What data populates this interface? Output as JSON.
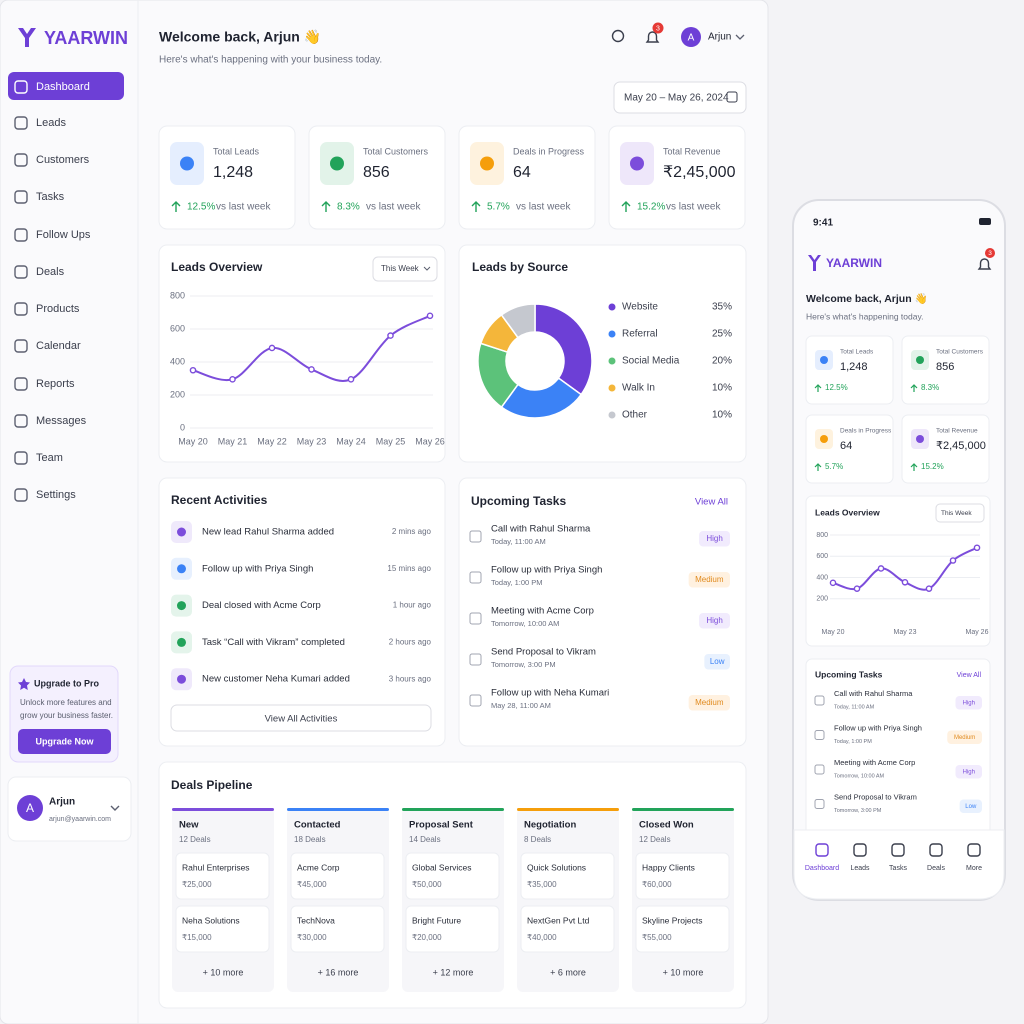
{
  "brand": "YAARWIN",
  "nav": [
    "Dashboard",
    "Leads",
    "Customers",
    "Tasks",
    "Follow Ups",
    "Deals",
    "Products",
    "Calendar",
    "Reports",
    "Messages",
    "Team",
    "Settings"
  ],
  "upgrade": {
    "title": "Upgrade to Pro",
    "text": [
      "Unlock more features and",
      "grow your business faster."
    ],
    "button": "Upgrade Now"
  },
  "user": {
    "initial": "A",
    "name": "Arjun",
    "email": "arjun@yaarwin.com"
  },
  "header": {
    "title": "Welcome back, Arjun 👋",
    "subtitle": "Here's what's happening with your business today.",
    "notifications": "3",
    "user_initial": "A",
    "user_name": "Arjun",
    "date_range": "May 20 – May 26, 2024"
  },
  "stats": [
    {
      "label": "Total Leads",
      "value": "1,248",
      "change": "12.5%",
      "note": "vs last week",
      "color": "#3b82f6"
    },
    {
      "label": "Total Customers",
      "value": "856",
      "change": "8.3%",
      "note": "vs last week",
      "color": "#22a35a"
    },
    {
      "label": "Deals in Progress",
      "value": "64",
      "change": "5.7%",
      "note": "vs last week",
      "color": "#f59e0b"
    },
    {
      "label": "Total Revenue",
      "value": "₹2,45,000",
      "change": "15.2%",
      "note": "vs last week",
      "color": "#7c4ddb"
    }
  ],
  "leads_overview": {
    "type": "line",
    "title": "Leads Overview",
    "period": "This Week",
    "categories": [
      "May 20",
      "May 21",
      "May 22",
      "May 23",
      "May 24",
      "May 25",
      "May 26"
    ],
    "values": [
      350,
      295,
      485,
      355,
      295,
      560,
      680
    ],
    "color": "#7c4ddb",
    "ylim": [
      0,
      800
    ],
    "yticks": [
      0,
      200,
      400,
      600,
      800
    ],
    "grid": true
  },
  "leads_by_source": {
    "type": "pie",
    "title": "Leads by Source",
    "categories": [
      "Website",
      "Referral",
      "Social Media",
      "Walk In",
      "Other"
    ],
    "values": [
      35,
      25,
      20,
      10,
      10
    ],
    "value_labels": [
      "35%",
      "25%",
      "20%",
      "10%",
      "10%"
    ],
    "colors": [
      "#6d3fd6",
      "#3b82f6",
      "#5cc27a",
      "#f4b63a",
      "#c5c8cf"
    ]
  },
  "recent_activities": {
    "title": "Recent Activities",
    "items": [
      {
        "text": "New lead Rahul Sharma added",
        "time": "2 mins ago"
      },
      {
        "text": "Follow up with Priya Singh",
        "time": "15 mins ago"
      },
      {
        "text": "Deal closed with Acme Corp",
        "time": "1 hour ago"
      },
      {
        "text": "Task “Call with Vikram” completed",
        "time": "2 hours ago"
      },
      {
        "text": "New customer Neha Kumari added",
        "time": "3 hours ago"
      }
    ],
    "button": "View All Activities"
  },
  "upcoming_tasks": {
    "title": "Upcoming Tasks",
    "link": "View All",
    "items": [
      {
        "title": "Call with Rahul Sharma",
        "due": "Today, 11:00 AM",
        "priority": "High"
      },
      {
        "title": "Follow up with Priya Singh",
        "due": "Today, 1:00 PM",
        "priority": "Medium"
      },
      {
        "title": "Meeting with Acme Corp",
        "due": "Tomorrow, 10:00 AM",
        "priority": "High"
      },
      {
        "title": "Send Proposal to Vikram",
        "due": "Tomorrow, 3:00 PM",
        "priority": "Low"
      },
      {
        "title": "Follow up with Neha Kumari",
        "due": "May 28, 11:00 AM",
        "priority": "Medium"
      }
    ]
  },
  "deals_pipeline": {
    "title": "Deals Pipeline",
    "stages": [
      {
        "name": "New",
        "count": "12 Deals",
        "color": "#7c4ddb",
        "deals": [
          {
            "name": "Rahul Enterprises",
            "amount": "₹25,000"
          },
          {
            "name": "Neha Solutions",
            "amount": "₹15,000"
          }
        ],
        "more": "+ 10 more"
      },
      {
        "name": "Contacted",
        "count": "18 Deals",
        "color": "#3b82f6",
        "deals": [
          {
            "name": "Acme Corp",
            "amount": "₹45,000"
          },
          {
            "name": "TechNova",
            "amount": "₹30,000"
          }
        ],
        "more": "+ 16 more"
      },
      {
        "name": "Proposal Sent",
        "count": "14 Deals",
        "color": "#22a35a",
        "deals": [
          {
            "name": "Global Services",
            "amount": "₹50,000"
          },
          {
            "name": "Bright Future",
            "amount": "₹20,000"
          }
        ],
        "more": "+ 12 more"
      },
      {
        "name": "Negotiation",
        "count": "8 Deals",
        "color": "#f59e0b",
        "deals": [
          {
            "name": "Quick Solutions",
            "amount": "₹35,000"
          },
          {
            "name": "NextGen Pvt Ltd",
            "amount": "₹40,000"
          }
        ],
        "more": "+ 6 more"
      },
      {
        "name": "Closed Won",
        "count": "12 Deals",
        "color": "#22a35a",
        "deals": [
          {
            "name": "Happy Clients",
            "amount": "₹60,000"
          },
          {
            "name": "Skyline Projects",
            "amount": "₹55,000"
          }
        ],
        "more": "+ 10 more"
      }
    ]
  },
  "mobile": {
    "time": "9:41",
    "subtitle": "Here's what's happening today.",
    "more": "More"
  }
}
